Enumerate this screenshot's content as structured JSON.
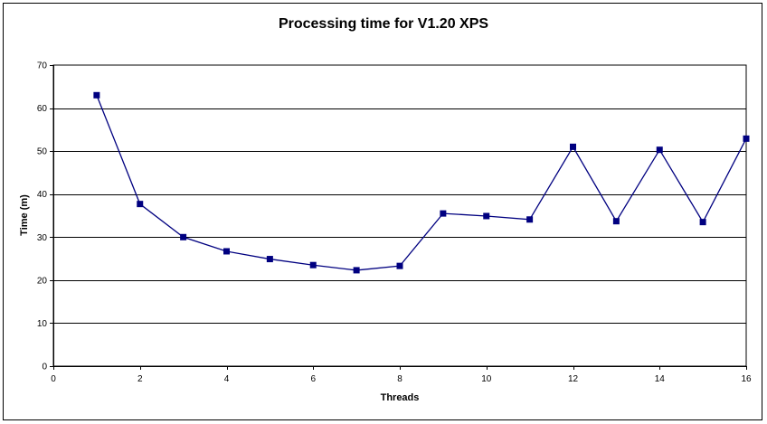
{
  "chart_data": {
    "type": "line",
    "title": "Processing time for V1.20 XPS",
    "xlabel": "Threads",
    "ylabel": "Time (m)",
    "xlim": [
      0,
      16
    ],
    "ylim": [
      0,
      70
    ],
    "xticks": [
      0,
      2,
      4,
      6,
      8,
      10,
      12,
      14,
      16
    ],
    "yticks": [
      0,
      10,
      20,
      30,
      40,
      50,
      60,
      70
    ],
    "grid": "horizontal",
    "series": [
      {
        "color": "#000080",
        "x": [
          1,
          2,
          3,
          4,
          5,
          6,
          7,
          8,
          9,
          10,
          11,
          12,
          13,
          14,
          15,
          16
        ],
        "y": [
          63,
          37.7,
          30,
          26.7,
          24.9,
          23.5,
          22.3,
          23.3,
          35.5,
          34.9,
          34.1,
          51,
          33.7,
          50.3,
          33.5,
          52.9
        ]
      }
    ]
  }
}
